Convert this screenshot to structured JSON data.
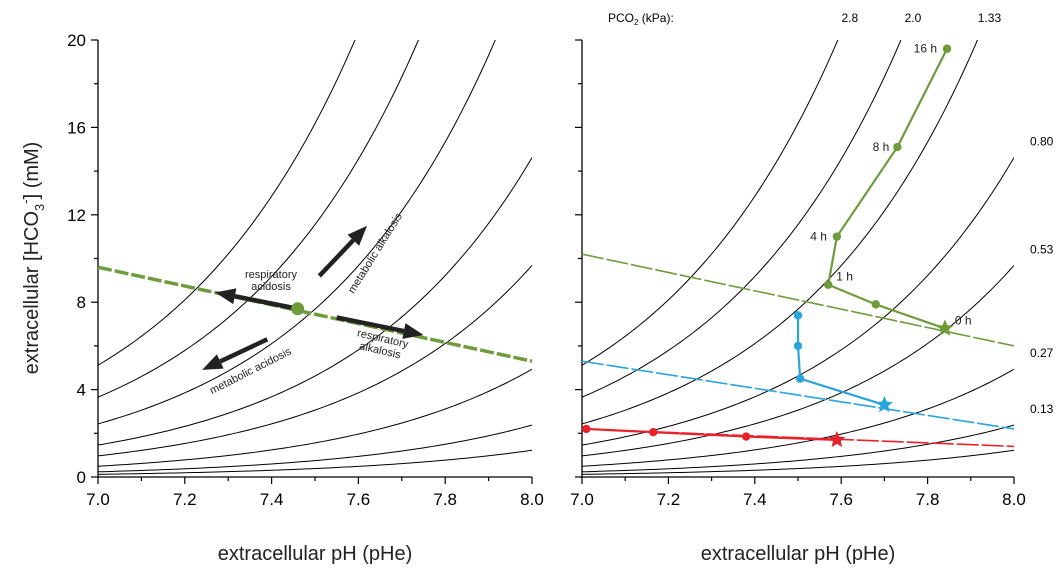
{
  "chart_data": [
    {
      "type": "line",
      "panel": "left",
      "xlabel": "extracellular pH (pHe)",
      "ylabel_parts": [
        "extracellular [HCO",
        "3",
        "-",
        "] (mM)"
      ],
      "xlim": [
        7.0,
        8.0
      ],
      "ylim": [
        0,
        20
      ],
      "x_ticks": [
        "7.0",
        "7.2",
        "7.4",
        "7.6",
        "7.8",
        "8.0"
      ],
      "y_ticks": [
        "0",
        "4",
        "8",
        "12",
        "16",
        "20"
      ],
      "grid": false,
      "isopleth_pco2": [
        2.8,
        2.0,
        1.33,
        0.8,
        0.53,
        0.27,
        0.13,
        0.067
      ],
      "buffer_line": {
        "x": [
          7.0,
          8.0
        ],
        "y": [
          9.6,
          5.3
        ],
        "color": "#6e9b3c"
      },
      "point": {
        "x": 7.46,
        "y": 7.7,
        "color": "#6e9b3c"
      },
      "arrows": [
        {
          "name": "respiratory acidosis",
          "from": [
            7.46,
            7.7
          ],
          "to": [
            7.27,
            8.45
          ]
        },
        {
          "name": "metabolic alkalosis",
          "from": [
            7.51,
            9.2
          ],
          "to": [
            7.62,
            11.5
          ]
        },
        {
          "name": "respiratory alkalosis",
          "from": [
            7.55,
            7.3
          ],
          "to": [
            7.75,
            6.5
          ]
        },
        {
          "name": "metabolic acidosis",
          "from": [
            7.39,
            6.3
          ],
          "to": [
            7.24,
            4.9
          ]
        }
      ],
      "annotations": [
        {
          "lines": [
            "respiratory",
            "acidosis"
          ]
        },
        {
          "lines": [
            "metabolic alkalosis"
          ]
        },
        {
          "lines": [
            "respiratory",
            "alkalosis"
          ]
        },
        {
          "lines": [
            "metabolic acidosis"
          ]
        }
      ]
    },
    {
      "type": "line",
      "panel": "right",
      "xlabel": "extracellular pH (pHe)",
      "xlim": [
        7.0,
        8.0
      ],
      "ylim": [
        0,
        20
      ],
      "x_ticks": [
        "7.0",
        "7.2",
        "7.4",
        "7.6",
        "7.8",
        "8.0"
      ],
      "grid": false,
      "pco2_header": {
        "parts": [
          "PCO",
          "2",
          " (kPa):"
        ]
      },
      "isopleth_pco2": [
        2.8,
        2.0,
        1.33,
        0.8,
        0.53,
        0.27,
        0.13,
        0.067
      ],
      "isopleth_labels": [
        "2.8",
        "2.0",
        "1.33",
        "0.80",
        "0.53",
        "0.27",
        "0.13"
      ],
      "buffer_lines": [
        {
          "x": [
            7.0,
            8.0
          ],
          "y": [
            10.2,
            6.0
          ],
          "color": "#6e9b3c"
        },
        {
          "x": [
            7.0,
            8.0
          ],
          "y": [
            5.3,
            2.2
          ],
          "color": "#2aa4dc"
        },
        {
          "x": [
            7.0,
            8.0
          ],
          "y": [
            2.2,
            1.4
          ],
          "color": "#e8222a"
        }
      ],
      "series": [
        {
          "color": "#6e9b3c",
          "x": [
            7.84,
            7.68,
            7.57,
            7.59,
            7.73,
            7.845
          ],
          "y": [
            6.8,
            7.9,
            8.8,
            11.0,
            15.1,
            19.6
          ],
          "labels": [
            "0 h",
            "",
            "1 h",
            "4 h",
            "8 h",
            "16 h"
          ]
        },
        {
          "color": "#2aa4dc",
          "x": [
            7.7,
            7.505,
            7.5,
            7.5
          ],
          "y": [
            3.3,
            4.5,
            6.0,
            7.4
          ]
        },
        {
          "color": "#e8222a",
          "x": [
            7.59,
            7.38,
            7.165,
            7.01
          ],
          "y": [
            1.7,
            1.85,
            2.05,
            2.2
          ]
        }
      ]
    }
  ]
}
